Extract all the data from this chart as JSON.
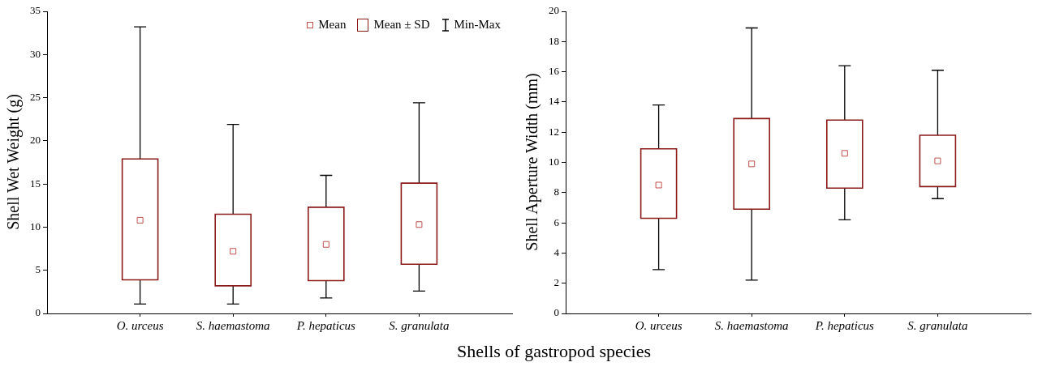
{
  "chart_data": [
    {
      "type": "box",
      "ylabel": "Shell Wet Weight (g)",
      "xlabel": "Shells of gastropod species",
      "categories": [
        "O. urceus",
        "S. haemastoma",
        "P. hepaticus",
        "S. granulata"
      ],
      "ylim": [
        0,
        35
      ],
      "yticks": [
        0,
        5,
        10,
        15,
        20,
        25,
        30,
        35
      ],
      "grid": false,
      "legend": "top right",
      "series": [
        {
          "type": "scatter",
          "name": "Mean",
          "color": "#c0504d",
          "marker": "square",
          "x": [
            "O. urceus",
            "S. haemastoma",
            "P. hepaticus",
            "S. granulata"
          ],
          "values": [
            10.8,
            7.2,
            8.0,
            10.3
          ]
        },
        {
          "type": "box",
          "name": "Mean ± SD",
          "color": "#8b1a1a",
          "boxes": [
            {
              "low": 1.1,
              "q1": 3.9,
              "q3": 17.9,
              "high": 33.2
            },
            {
              "low": 1.1,
              "q1": 3.2,
              "q3": 11.5,
              "high": 21.9
            },
            {
              "low": 1.8,
              "q1": 3.8,
              "q3": 12.3,
              "high": 16.0
            },
            {
              "low": 2.6,
              "q1": 5.7,
              "q3": 15.1,
              "high": 24.4
            }
          ]
        }
      ],
      "annotations": [
        "Min-Max"
      ]
    },
    {
      "type": "box",
      "ylabel": "Shell Aperture Width (mm)",
      "categories": [
        "O. urceus",
        "S. haemastoma",
        "P. hepaticus",
        "S. granulata"
      ],
      "ylim": [
        0,
        20
      ],
      "yticks": [
        0,
        2,
        4,
        6,
        8,
        10,
        12,
        14,
        16,
        18,
        20
      ],
      "grid": false,
      "series": [
        {
          "type": "scatter",
          "color": "#c0504d",
          "marker": "square",
          "x": [
            "O. urceus",
            "S. haemastoma",
            "P. hepaticus",
            "S. granulata"
          ],
          "values": [
            8.5,
            9.9,
            10.6,
            10.1
          ]
        },
        {
          "type": "box",
          "color": "#8b1a1a",
          "boxes": [
            {
              "low": 2.9,
              "q1": 6.3,
              "q3": 10.9,
              "high": 13.8
            },
            {
              "low": 2.2,
              "q1": 6.9,
              "q3": 12.9,
              "high": 18.9
            },
            {
              "low": 6.2,
              "q1": 8.3,
              "q3": 12.8,
              "high": 16.4
            },
            {
              "low": 7.6,
              "q1": 8.4,
              "q3": 11.8,
              "high": 16.1
            }
          ]
        }
      ]
    }
  ]
}
